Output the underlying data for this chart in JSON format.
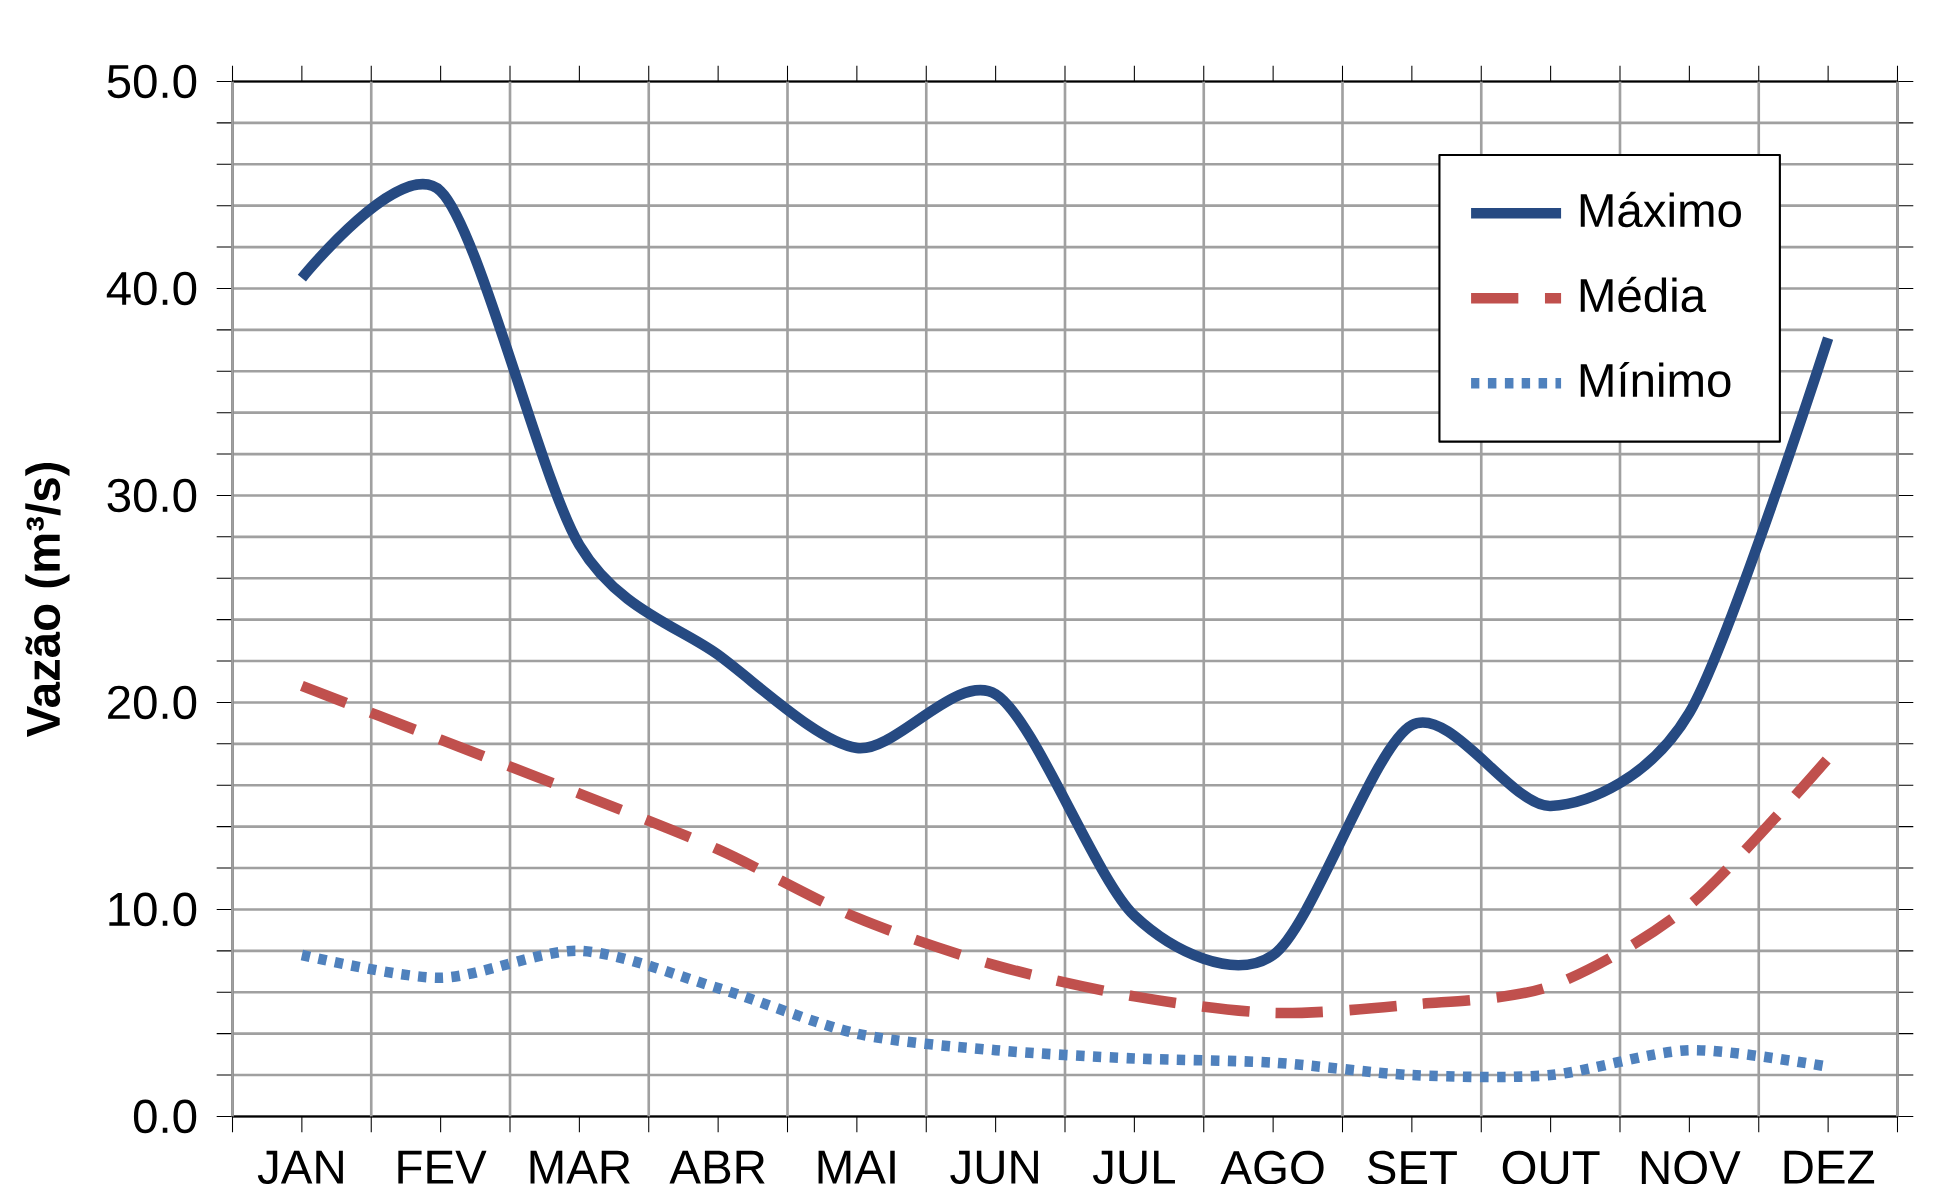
{
  "chart_data": {
    "type": "line",
    "ylabel": "Vazão (m³/s)",
    "categories": [
      "JAN",
      "FEV",
      "MAR",
      "ABR",
      "MAI",
      "JUN",
      "JUL",
      "AGO",
      "SET",
      "OUT",
      "NOV",
      "DEZ"
    ],
    "series": [
      {
        "name": "Máximo",
        "color": "#264a82",
        "line_style": "solid",
        "values": [
          40.5,
          44.7,
          27.6,
          22.3,
          17.8,
          20.4,
          9.7,
          7.8,
          18.9,
          15.0,
          19.5,
          37.6
        ]
      },
      {
        "name": "Média",
        "color": "#c0504d",
        "line_style": "dashed",
        "values": [
          20.8,
          18.2,
          15.6,
          12.9,
          9.6,
          7.3,
          5.8,
          5.0,
          5.4,
          6.3,
          10.2,
          17.3
        ]
      },
      {
        "name": "Mínimo",
        "color": "#4f81bd",
        "line_style": "dotted",
        "values": [
          7.8,
          6.7,
          8.0,
          6.2,
          4.0,
          3.2,
          2.8,
          2.6,
          2.0,
          2.0,
          3.2,
          2.4
        ]
      }
    ],
    "ylim": [
      0,
      50
    ],
    "yticks": [
      {
        "value": 0,
        "label": "0.0"
      },
      {
        "value": 2,
        "label": null
      },
      {
        "value": 4,
        "label": null
      },
      {
        "value": 6,
        "label": null
      },
      {
        "value": 8,
        "label": null
      },
      {
        "value": 10,
        "label": "10.0"
      },
      {
        "value": 12,
        "label": null
      },
      {
        "value": 14,
        "label": null
      },
      {
        "value": 16,
        "label": null
      },
      {
        "value": 18,
        "label": null
      },
      {
        "value": 20,
        "label": "20.0"
      },
      {
        "value": 22,
        "label": null
      },
      {
        "value": 24,
        "label": null
      },
      {
        "value": 26,
        "label": null
      },
      {
        "value": 28,
        "label": null
      },
      {
        "value": 30,
        "label": "30.0"
      },
      {
        "value": 32,
        "label": null
      },
      {
        "value": 34,
        "label": null
      },
      {
        "value": 36,
        "label": null
      },
      {
        "value": 38,
        "label": null
      },
      {
        "value": 40,
        "label": "40.0"
      },
      {
        "value": 42,
        "label": null
      },
      {
        "value": 44,
        "label": null
      },
      {
        "value": 46,
        "label": null
      },
      {
        "value": 48,
        "label": null
      },
      {
        "value": 50,
        "label": "50.0"
      }
    ],
    "grid": true,
    "legend": "top right",
    "marker": "none"
  }
}
